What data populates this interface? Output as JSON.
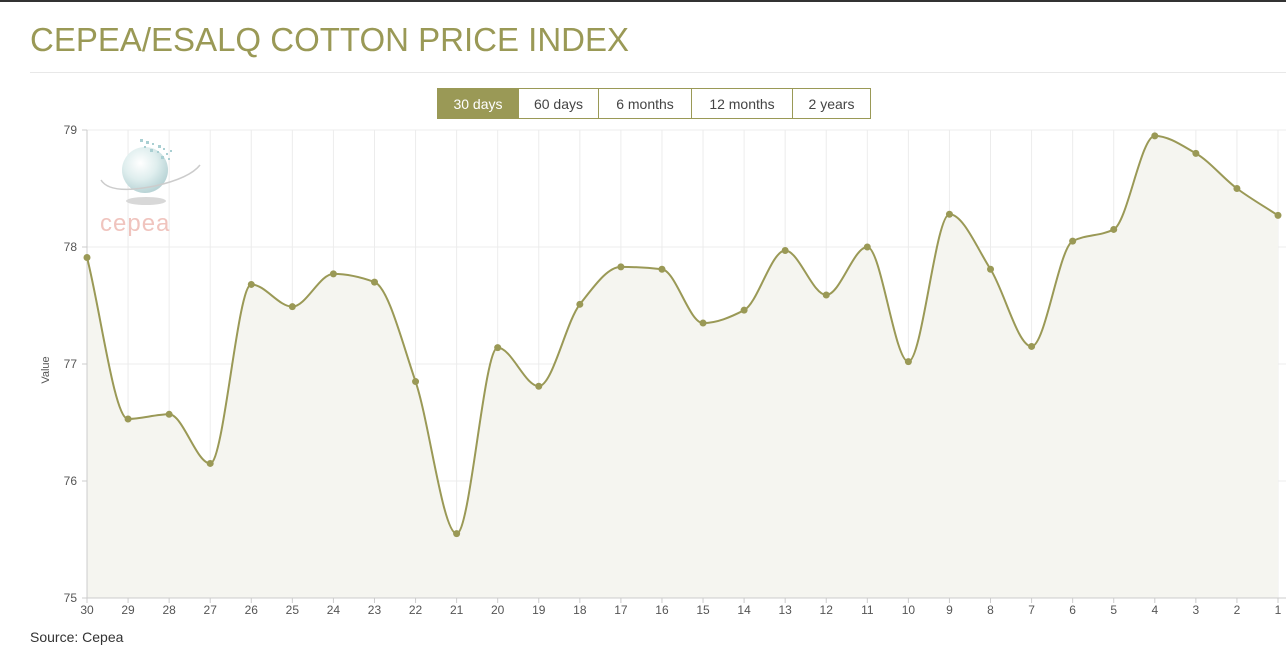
{
  "page": {
    "title": "CEPEA/ESALQ COTTON PRICE INDEX",
    "source": "Source: Cepea"
  },
  "range_buttons": [
    {
      "label": "30 days",
      "active": true
    },
    {
      "label": "60 days",
      "active": false
    },
    {
      "label": "6 months",
      "active": false
    },
    {
      "label": "12 months",
      "active": false
    },
    {
      "label": "2 years",
      "active": false
    }
  ],
  "logo": {
    "text": "cepea"
  },
  "colors": {
    "accent": "#9a9956",
    "line": "#9a9956",
    "fill": "#f5f5f0",
    "grid": "#ececec"
  },
  "chart_data": {
    "type": "area",
    "title": "",
    "xlabel": "",
    "ylabel": "Value",
    "ylim": [
      75,
      79
    ],
    "yticks": [
      75,
      76,
      77,
      78,
      79
    ],
    "grid": true,
    "smooth": true,
    "categories": [
      "30",
      "29",
      "28",
      "27",
      "26",
      "25",
      "24",
      "23",
      "22",
      "21",
      "20",
      "19",
      "18",
      "17",
      "16",
      "15",
      "14",
      "13",
      "12",
      "11",
      "10",
      "9",
      "8",
      "7",
      "6",
      "5",
      "4",
      "3",
      "2",
      "1"
    ],
    "series": [
      {
        "name": "",
        "values": [
          77.91,
          76.53,
          76.57,
          76.15,
          77.68,
          77.49,
          77.77,
          77.7,
          76.85,
          75.55,
          77.14,
          76.81,
          77.51,
          77.83,
          77.81,
          77.35,
          77.46,
          77.97,
          77.59,
          78.0,
          77.02,
          78.28,
          77.81,
          77.15,
          78.05,
          78.15,
          78.95,
          78.8,
          78.5,
          78.27
        ]
      }
    ]
  }
}
